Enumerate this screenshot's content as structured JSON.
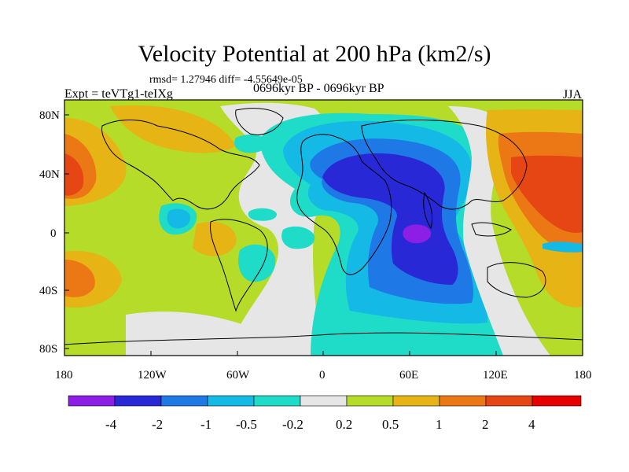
{
  "header": {
    "title": "Velocity Potential at 200 hPa (km2/s)",
    "stats": "rmsd= 1.27946 diff= -4.55649e-05",
    "experiment": "Expt = teVTg1-teIXg",
    "period": "0696kyr BP - 0696kyr BP",
    "season": "JJA"
  },
  "axes": {
    "lat_labels": [
      "80N",
      "40N",
      "0",
      "40S",
      "80S"
    ],
    "lon_labels": [
      "180",
      "120W",
      "60W",
      "0",
      "60E",
      "120E",
      "180"
    ]
  },
  "colorbar": {
    "labels": [
      "-4",
      "-2",
      "-1",
      "-0.5",
      "-0.2",
      "0.2",
      "0.5",
      "1",
      "2",
      "4"
    ],
    "colors": [
      "#8c1ee6",
      "#2828d7",
      "#1e78e6",
      "#14b9e6",
      "#1edcc8",
      "#e6e6e6",
      "#b4dc28",
      "#e6b414",
      "#eb7814",
      "#e64614",
      "#e60000"
    ]
  },
  "palette": {
    "n4": "#8c1ee6",
    "n2": "#2828d7",
    "n1": "#1e78e6",
    "n05": "#14b9e6",
    "n02": "#1edcc8",
    "zero": "#e6e6e6",
    "p02": "#b4dc28",
    "p05": "#e6b414",
    "p1": "#eb7814",
    "p2": "#e64614",
    "p4": "#e60000"
  }
}
